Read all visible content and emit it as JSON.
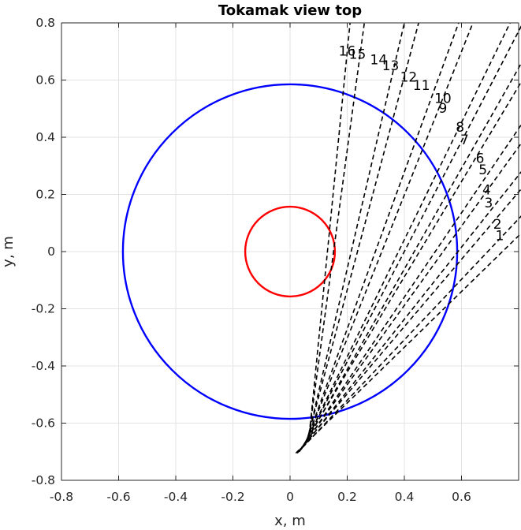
{
  "chart_data": {
    "type": "line",
    "title": "Tokamak view top",
    "xlabel": "x, m",
    "ylabel": "y, m",
    "xlim": [
      -0.8,
      0.8
    ],
    "ylim": [
      -0.8,
      0.8
    ],
    "xticks": [
      -0.8,
      -0.6,
      -0.4,
      -0.2,
      0,
      0.2,
      0.4,
      0.6
    ],
    "yticks": [
      0.8,
      0.6,
      0.4,
      0.2,
      0,
      -0.2,
      -0.4,
      -0.6,
      -0.8
    ],
    "xtick_labels": [
      "-0.8",
      "-0.6",
      "-0.4",
      "-0.2",
      "0",
      "0.2",
      "0.4",
      "0.6"
    ],
    "ytick_labels": [
      "0.8",
      "0.6",
      "0.4",
      "0.2",
      "0",
      "-0.2",
      "-0.4",
      "-0.6",
      "-0.8"
    ],
    "grid": true,
    "equal_aspect": true,
    "circles": [
      {
        "cx": 0,
        "cy": 0,
        "r": 0.585,
        "color": "#0000ff"
      },
      {
        "cx": 0,
        "cy": 0,
        "r": 0.157,
        "color": "#ff0000"
      }
    ],
    "rays": [
      {
        "label": "1",
        "x0": 0.02,
        "y0": -0.705,
        "x1": 0.81,
        "y1": 0.065,
        "lx": 0.719,
        "ly": 0.04
      },
      {
        "label": "2",
        "x0": 0.025,
        "y0": -0.705,
        "x1": 0.81,
        "y1": 0.125,
        "lx": 0.711,
        "ly": 0.08
      },
      {
        "label": "3",
        "x0": 0.028,
        "y0": -0.7,
        "x1": 0.81,
        "y1": 0.22,
        "lx": 0.68,
        "ly": 0.155
      },
      {
        "label": "4",
        "x0": 0.032,
        "y0": -0.7,
        "x1": 0.81,
        "y1": 0.28,
        "lx": 0.673,
        "ly": 0.2
      },
      {
        "label": "5",
        "x0": 0.038,
        "y0": -0.69,
        "x1": 0.81,
        "y1": 0.38,
        "lx": 0.66,
        "ly": 0.27
      },
      {
        "label": "6",
        "x0": 0.04,
        "y0": -0.69,
        "x1": 0.81,
        "y1": 0.445,
        "lx": 0.65,
        "ly": 0.31
      },
      {
        "label": "7",
        "x0": 0.045,
        "y0": -0.68,
        "x1": 0.81,
        "y1": 0.595,
        "lx": 0.596,
        "ly": 0.375
      },
      {
        "label": "8",
        "x0": 0.048,
        "y0": -0.68,
        "x1": 0.81,
        "y1": 0.66,
        "lx": 0.58,
        "ly": 0.42
      },
      {
        "label": "9",
        "x0": 0.052,
        "y0": -0.67,
        "x1": 0.81,
        "y1": 0.79,
        "lx": 0.52,
        "ly": 0.485
      },
      {
        "label": "10",
        "x0": 0.055,
        "y0": -0.665,
        "x1": 0.77,
        "y1": 0.8,
        "lx": 0.505,
        "ly": 0.52
      },
      {
        "label": "11",
        "x0": 0.058,
        "y0": -0.66,
        "x1": 0.64,
        "y1": 0.8,
        "lx": 0.43,
        "ly": 0.565
      },
      {
        "label": "12",
        "x0": 0.06,
        "y0": -0.655,
        "x1": 0.59,
        "y1": 0.8,
        "lx": 0.385,
        "ly": 0.595
      },
      {
        "label": "13",
        "x0": 0.062,
        "y0": -0.65,
        "x1": 0.45,
        "y1": 0.8,
        "lx": 0.322,
        "ly": 0.635
      },
      {
        "label": "14",
        "x0": 0.064,
        "y0": -0.645,
        "x1": 0.4,
        "y1": 0.8,
        "lx": 0.28,
        "ly": 0.655
      },
      {
        "label": "15",
        "x0": 0.066,
        "y0": -0.64,
        "x1": 0.26,
        "y1": 0.8,
        "lx": 0.206,
        "ly": 0.675
      },
      {
        "label": "16",
        "x0": 0.068,
        "y0": -0.635,
        "x1": 0.21,
        "y1": 0.8,
        "lx": 0.17,
        "ly": 0.685
      }
    ]
  }
}
